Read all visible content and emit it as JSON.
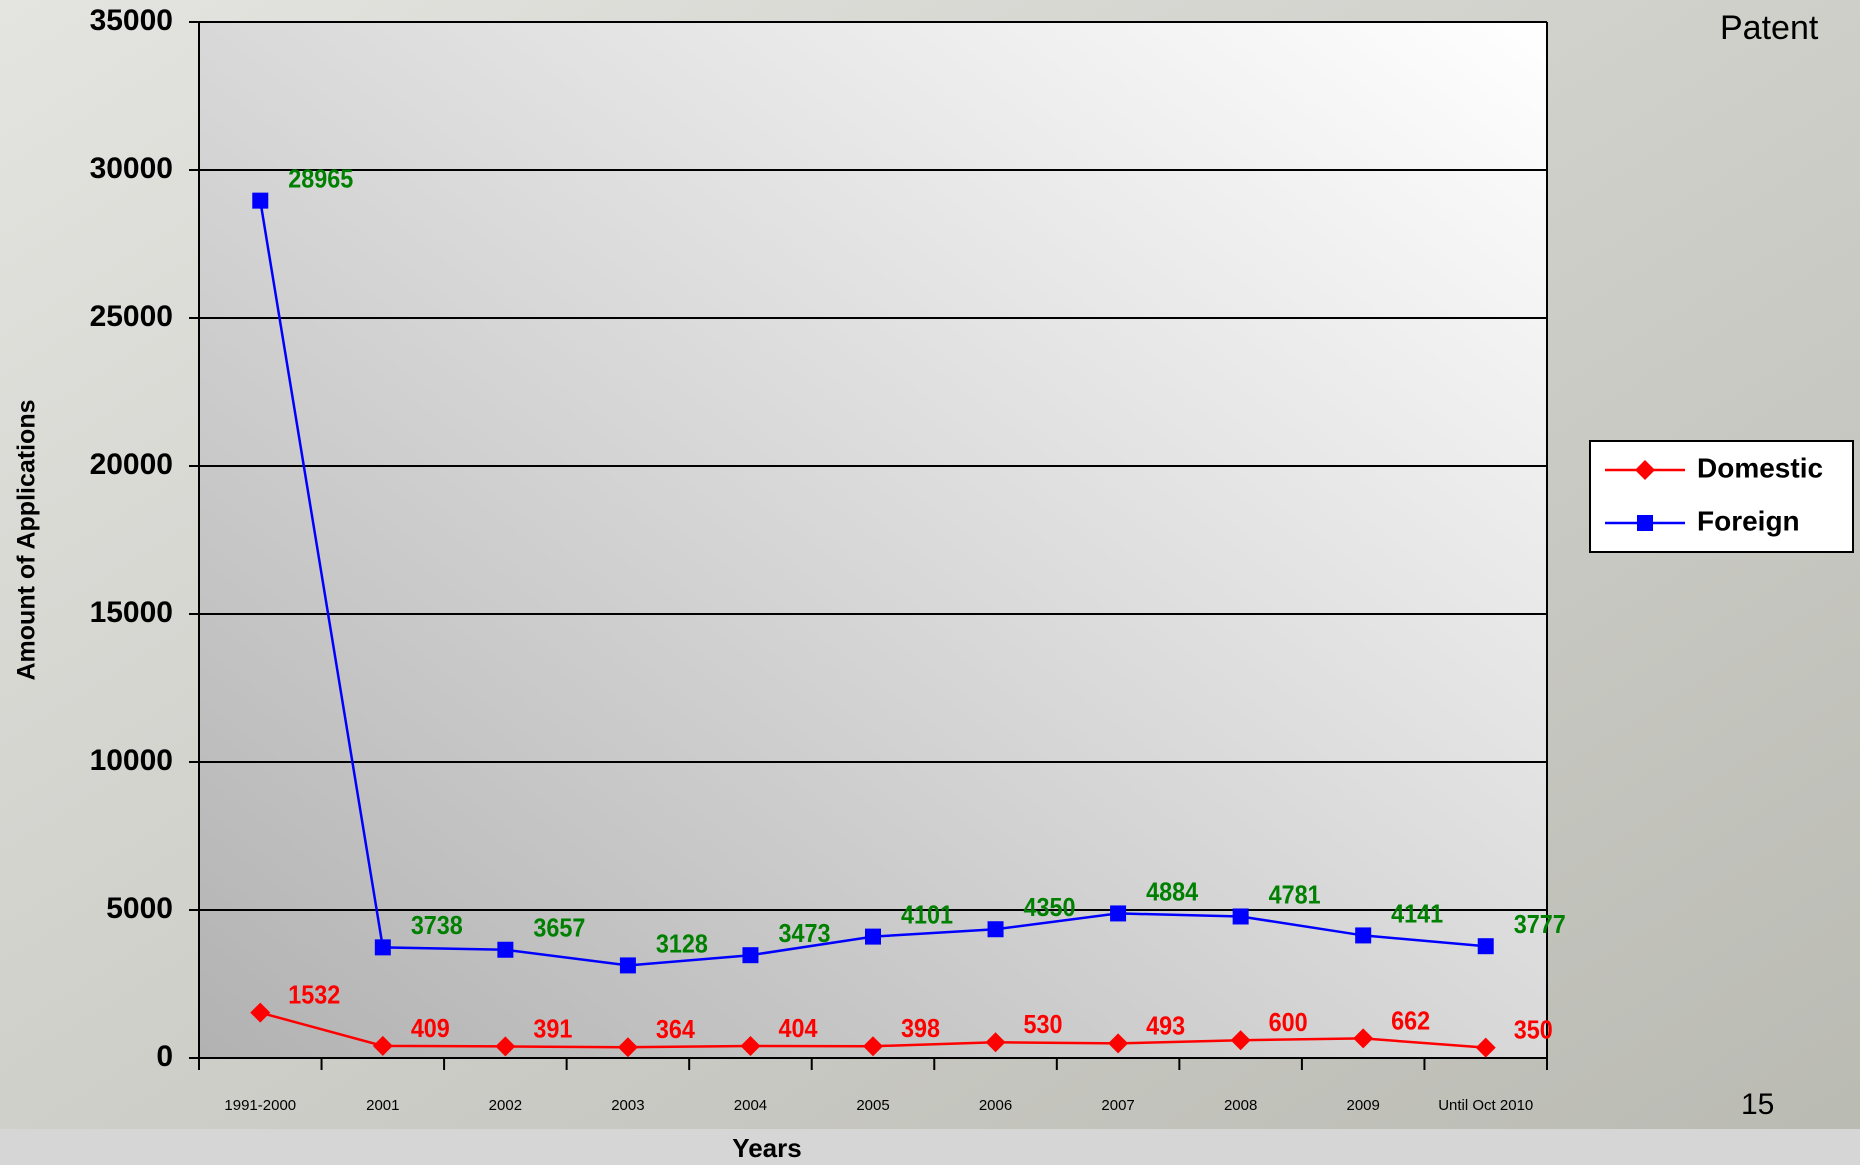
{
  "chart_data": {
    "type": "line",
    "y_label": "Amount of Applications",
    "x_label": "Years",
    "categories": [
      "1991-2000",
      "2001",
      "2002",
      "2003",
      "2004",
      "2005",
      "2006",
      "2007",
      "2008",
      "2009",
      "Until Oct 2010"
    ],
    "series": [
      {
        "name": "Domestic",
        "color": "#ff0000",
        "label_color": "#ff0000",
        "marker": "diamond",
        "values": [
          1532,
          409,
          391,
          364,
          404,
          398,
          530,
          493,
          600,
          662,
          350
        ]
      },
      {
        "name": "Foreign",
        "color": "#0000ff",
        "label_color": "#008000",
        "marker": "square",
        "values": [
          28965,
          3738,
          3657,
          3128,
          3473,
          4101,
          4350,
          4884,
          4781,
          4141,
          3777
        ]
      }
    ],
    "ylim": [
      0,
      35000
    ],
    "yticks": [
      0,
      5000,
      10000,
      15000,
      20000,
      25000,
      30000,
      35000
    ],
    "grid": true,
    "legend": "right"
  },
  "slide": {
    "title": "Patent",
    "page_number": "15"
  }
}
